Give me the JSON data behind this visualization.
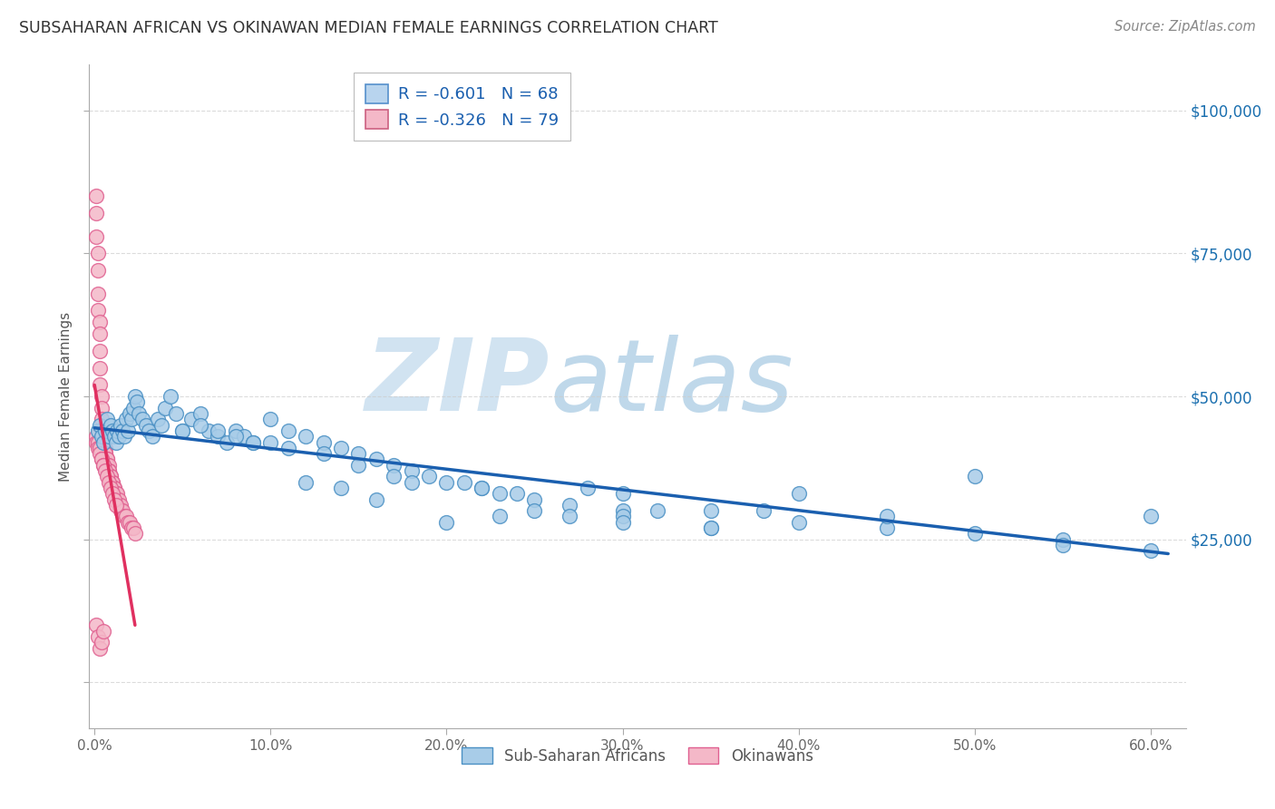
{
  "title": "SUBSAHARAN AFRICAN VS OKINAWAN MEDIAN FEMALE EARNINGS CORRELATION CHART",
  "source": "Source: ZipAtlas.com",
  "ylabel": "Median Female Earnings",
  "xlim": [
    -0.003,
    0.62
  ],
  "ylim": [
    -8000,
    108000
  ],
  "yticks": [
    0,
    25000,
    50000,
    75000,
    100000
  ],
  "ytick_labels": [
    "",
    "$25,000",
    "$50,000",
    "$75,000",
    "$100,000"
  ],
  "xticks": [
    0.0,
    0.1,
    0.2,
    0.3,
    0.4,
    0.5,
    0.6
  ],
  "xtick_labels": [
    "0.0%",
    "10.0%",
    "20.0%",
    "30.0%",
    "40.0%",
    "50.0%",
    "60.0%"
  ],
  "blue_scatter_x": [
    0.002,
    0.003,
    0.004,
    0.005,
    0.006,
    0.007,
    0.008,
    0.009,
    0.01,
    0.011,
    0.012,
    0.013,
    0.014,
    0.015,
    0.016,
    0.017,
    0.018,
    0.019,
    0.02,
    0.021,
    0.022,
    0.023,
    0.024,
    0.025,
    0.027,
    0.029,
    0.031,
    0.033,
    0.036,
    0.038,
    0.04,
    0.043,
    0.046,
    0.05,
    0.055,
    0.06,
    0.065,
    0.07,
    0.075,
    0.08,
    0.085,
    0.09,
    0.1,
    0.11,
    0.12,
    0.13,
    0.14,
    0.15,
    0.16,
    0.17,
    0.18,
    0.19,
    0.2,
    0.21,
    0.22,
    0.23,
    0.24,
    0.25,
    0.27,
    0.3,
    0.35,
    0.4,
    0.45,
    0.5,
    0.55,
    0.6,
    0.3,
    0.28
  ],
  "blue_scatter_y": [
    44000,
    45000,
    43000,
    42000,
    44000,
    46000,
    43000,
    45000,
    44000,
    43000,
    42000,
    44000,
    43000,
    45000,
    44000,
    43000,
    46000,
    44000,
    47000,
    46000,
    48000,
    50000,
    49000,
    47000,
    46000,
    45000,
    44000,
    43000,
    46000,
    45000,
    48000,
    50000,
    47000,
    44000,
    46000,
    47000,
    44000,
    43000,
    42000,
    44000,
    43000,
    42000,
    46000,
    44000,
    43000,
    42000,
    41000,
    40000,
    39000,
    38000,
    37000,
    36000,
    35000,
    35000,
    34000,
    33000,
    33000,
    32000,
    31000,
    30000,
    30000,
    28000,
    27000,
    26000,
    25000,
    23000,
    33000,
    34000
  ],
  "blue_scatter_x_extra": [
    0.3,
    0.5,
    0.35,
    0.22,
    0.4,
    0.12,
    0.14,
    0.16,
    0.55,
    0.6,
    0.38,
    0.45,
    0.2,
    0.23,
    0.25,
    0.27,
    0.3,
    0.32,
    0.35,
    0.18,
    0.17,
    0.15,
    0.13,
    0.11,
    0.09,
    0.07,
    0.05,
    0.06,
    0.08,
    0.1
  ],
  "blue_scatter_y_extra": [
    29000,
    36000,
    27000,
    34000,
    33000,
    35000,
    34000,
    32000,
    24000,
    29000,
    30000,
    29000,
    28000,
    29000,
    30000,
    29000,
    28000,
    30000,
    27000,
    35000,
    36000,
    38000,
    40000,
    41000,
    42000,
    44000,
    44000,
    45000,
    43000,
    42000
  ],
  "pink_scatter_x": [
    0.001,
    0.001,
    0.001,
    0.002,
    0.002,
    0.002,
    0.002,
    0.003,
    0.003,
    0.003,
    0.003,
    0.003,
    0.004,
    0.004,
    0.004,
    0.004,
    0.005,
    0.005,
    0.005,
    0.005,
    0.005,
    0.006,
    0.006,
    0.006,
    0.006,
    0.007,
    0.007,
    0.007,
    0.007,
    0.008,
    0.008,
    0.008,
    0.008,
    0.009,
    0.009,
    0.009,
    0.01,
    0.01,
    0.01,
    0.011,
    0.011,
    0.012,
    0.012,
    0.013,
    0.013,
    0.014,
    0.014,
    0.015,
    0.015,
    0.016,
    0.017,
    0.018,
    0.019,
    0.02,
    0.021,
    0.022,
    0.023,
    0.001,
    0.001,
    0.002,
    0.002,
    0.003,
    0.003,
    0.004,
    0.004,
    0.005,
    0.005,
    0.006,
    0.007,
    0.008,
    0.009,
    0.01,
    0.011,
    0.012,
    0.001,
    0.002,
    0.003,
    0.004,
    0.005
  ],
  "pink_scatter_y": [
    85000,
    82000,
    78000,
    75000,
    72000,
    68000,
    65000,
    63000,
    61000,
    58000,
    55000,
    52000,
    50000,
    48000,
    46000,
    44000,
    44000,
    43000,
    42000,
    42000,
    41000,
    41000,
    40000,
    40000,
    39000,
    39000,
    39000,
    38000,
    38000,
    38000,
    37000,
    37000,
    36000,
    36000,
    36000,
    35000,
    35000,
    35000,
    34000,
    34000,
    34000,
    33000,
    33000,
    33000,
    32000,
    32000,
    31000,
    31000,
    30000,
    30000,
    29000,
    29000,
    28000,
    28000,
    27000,
    27000,
    26000,
    43000,
    42000,
    42000,
    41000,
    41000,
    40000,
    39000,
    39000,
    38000,
    38000,
    37000,
    36000,
    35000,
    34000,
    33000,
    32000,
    31000,
    10000,
    8000,
    6000,
    7000,
    9000
  ],
  "blue_color": "#a8cce8",
  "blue_edge_color": "#4a90c4",
  "pink_color": "#f4b8c8",
  "pink_edge_color": "#e06090",
  "blue_line_color": "#1a5faf",
  "pink_line_color": "#e03060",
  "watermark_zip_color": "#d0e8f5",
  "watermark_atlas_color": "#c0d8ec",
  "grid_color": "#cccccc",
  "title_color": "#333333",
  "right_axis_color": "#1a6faf",
  "legend_text_color": "#1a5faf",
  "blue_R": -0.601,
  "blue_N": 68,
  "pink_R": -0.326,
  "pink_N": 79,
  "blue_trend_x0": 0.0,
  "blue_trend_x1": 0.61,
  "blue_trend_y0": 44500,
  "blue_trend_y1": 22500,
  "pink_trend_x0": 0.0,
  "pink_trend_x1": 0.023,
  "pink_trend_y0": 52000,
  "pink_trend_y1": 10000
}
